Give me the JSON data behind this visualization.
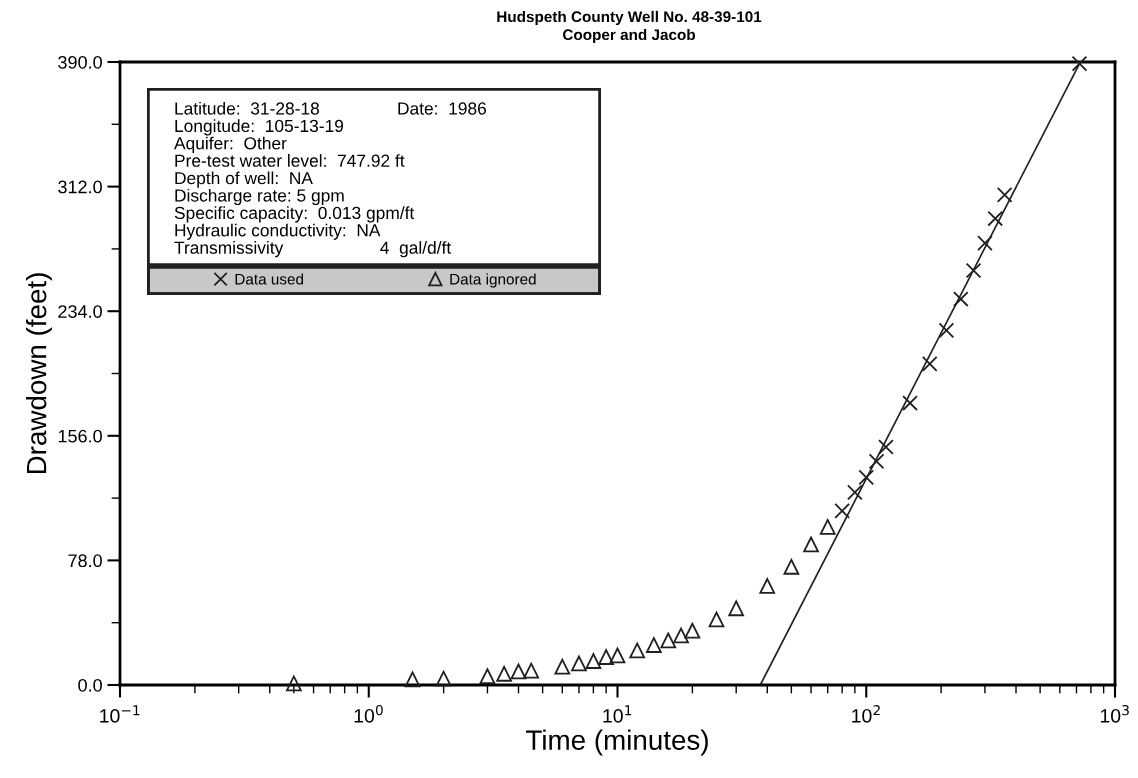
{
  "chart_data": {
    "type": "scatter",
    "title": "Hudspeth County Well No. 48-39-101",
    "subtitle": "Cooper and Jacob",
    "xlabel": "Time (minutes)",
    "ylabel": "Drawdown (feet)",
    "log": "x",
    "grid": false,
    "legend": "top left",
    "xlim": [
      0.1,
      1000
    ],
    "ylim": [
      0,
      390
    ],
    "xticks": [
      {
        "value": 0.1,
        "label": "10$^{−1}$"
      },
      {
        "value": 0.2,
        "label": null
      },
      {
        "value": 0.3,
        "label": null
      },
      {
        "value": 0.4,
        "label": null
      },
      {
        "value": 0.5,
        "label": null
      },
      {
        "value": 0.6,
        "label": null
      },
      {
        "value": 0.7,
        "label": null
      },
      {
        "value": 0.8,
        "label": null
      },
      {
        "value": 0.9,
        "label": null
      },
      {
        "value": 1,
        "label": "10$^{0}$"
      },
      {
        "value": 2,
        "label": null
      },
      {
        "value": 3,
        "label": null
      },
      {
        "value": 4,
        "label": null
      },
      {
        "value": 5,
        "label": null
      },
      {
        "value": 6,
        "label": null
      },
      {
        "value": 7,
        "label": null
      },
      {
        "value": 8,
        "label": null
      },
      {
        "value": 9,
        "label": null
      },
      {
        "value": 10,
        "label": "10$^{1}$"
      },
      {
        "value": 20,
        "label": null
      },
      {
        "value": 30,
        "label": null
      },
      {
        "value": 40,
        "label": null
      },
      {
        "value": 50,
        "label": null
      },
      {
        "value": 60,
        "label": null
      },
      {
        "value": 70,
        "label": null
      },
      {
        "value": 80,
        "label": null
      },
      {
        "value": 90,
        "label": null
      },
      {
        "value": 100,
        "label": "10$^{2}$"
      },
      {
        "value": 200,
        "label": null
      },
      {
        "value": 300,
        "label": null
      },
      {
        "value": 400,
        "label": null
      },
      {
        "value": 500,
        "label": null
      },
      {
        "value": 600,
        "label": null
      },
      {
        "value": 700,
        "label": null
      },
      {
        "value": 800,
        "label": null
      },
      {
        "value": 900,
        "label": null
      },
      {
        "value": 1000,
        "label": "10$^{3}$"
      }
    ],
    "yticks": [
      {
        "value": 0,
        "label": "0.0"
      },
      {
        "value": 39,
        "label": null
      },
      {
        "value": 78,
        "label": "78.0"
      },
      {
        "value": 117,
        "label": null
      },
      {
        "value": 156,
        "label": "156.0"
      },
      {
        "value": 195,
        "label": null
      },
      {
        "value": 234,
        "label": "234.0"
      },
      {
        "value": 273,
        "label": null
      },
      {
        "value": 312,
        "label": "312.0"
      },
      {
        "value": 351,
        "label": null
      },
      {
        "value": 390,
        "label": "390.0"
      }
    ],
    "series": [
      {
        "name": "Data used",
        "marker": "cross",
        "color": "#231f20",
        "x": [
          80,
          90,
          100,
          110,
          120,
          150,
          180,
          210,
          240,
          270,
          300,
          330,
          360,
          720
        ],
        "values": [
          109,
          120.6,
          130,
          140,
          149,
          176.5,
          201,
          222,
          241.6,
          259.5,
          276.6,
          292,
          306.8,
          389
        ]
      },
      {
        "name": "Data ignored",
        "marker": "triangle",
        "color": "#231f20",
        "x": [
          0.5,
          1.5,
          2,
          3,
          3.5,
          4,
          4.5,
          6,
          7,
          8,
          9,
          10,
          12,
          14,
          16,
          18,
          20,
          25,
          30,
          40,
          50,
          60,
          70
        ],
        "values": [
          1,
          3.5,
          4,
          5.5,
          7,
          8.5,
          9,
          11.5,
          13.5,
          15,
          17.5,
          18.5,
          21.6,
          25,
          27.9,
          31,
          34,
          41,
          48,
          62,
          74,
          88,
          99
        ]
      },
      {
        "type": "line",
        "line_style": "solid",
        "color": "#231f20",
        "x": [
          37.5,
          720
        ],
        "values": [
          0,
          389
        ]
      }
    ],
    "annotations": [
      "Latitude:  31-28-18",
      "Date:  1986",
      "Longitude:  105-13-19",
      "Aquifer:  Other",
      "Pre-test water level:  747.92 ft",
      "Depth of well:  NA",
      "Discharge rate: 5 gpm",
      "Specific capacity:  0.013 gpm/ft",
      "Hydraulic conductivity:  NA",
      "Transmissivity                    4  gal/d/ft"
    ]
  }
}
